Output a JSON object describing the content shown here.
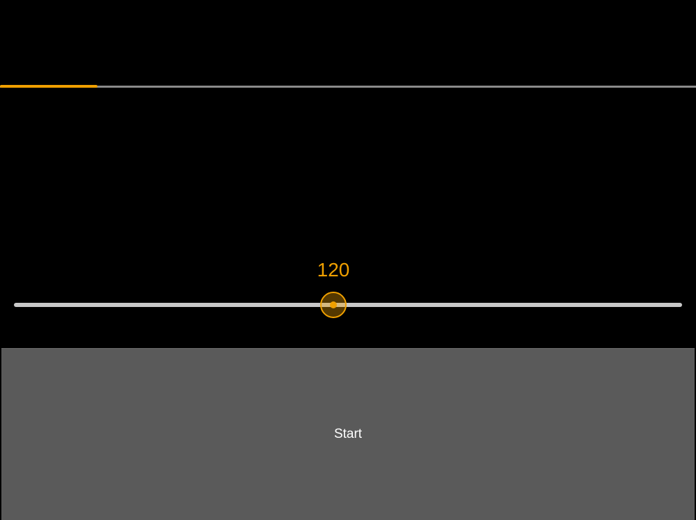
{
  "colors": {
    "accent": "#f0a000",
    "background": "#000000",
    "button": "#5a5a5a",
    "track": "#c8c8c8"
  },
  "progress": {
    "fraction": 0.14
  },
  "tempo_slider": {
    "value_label": "120",
    "fraction": 0.478
  },
  "start_button": {
    "label": "Start"
  }
}
